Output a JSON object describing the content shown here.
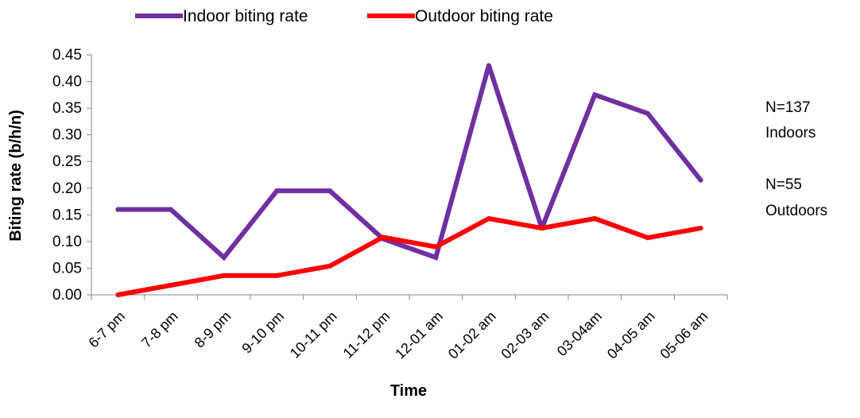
{
  "chart_data": {
    "type": "line",
    "xlabel": "Time",
    "ylabel": "Biting rate (b/h/n)",
    "categories": [
      "6-7 pm",
      "7-8 pm",
      "8-9 pm",
      "9-10 pm",
      "10-11 pm",
      "11-12 pm",
      "12-01 am",
      "01-02 am",
      "02-03 am",
      "03-04am",
      "04-05 am",
      "05-06 am"
    ],
    "ylim": [
      0,
      0.45
    ],
    "yticks": [
      "0.00",
      "0.05",
      "0.10",
      "0.15",
      "0.20",
      "0.25",
      "0.30",
      "0.35",
      "0.40",
      "0.45"
    ],
    "grid": false,
    "legend_position": "top",
    "series": [
      {
        "name": "Indoor biting rate",
        "color": "#7030A0",
        "values": [
          0.16,
          0.16,
          0.07,
          0.195,
          0.195,
          0.105,
          0.07,
          0.43,
          0.125,
          0.375,
          0.34,
          0.215
        ]
      },
      {
        "name": "Outdoor biting rate",
        "color": "#FF0000",
        "values": [
          0.0,
          0.018,
          0.036,
          0.036,
          0.054,
          0.108,
          0.09,
          0.143,
          0.125,
          0.143,
          0.107,
          0.125
        ]
      }
    ],
    "annotations": [
      "N=137",
      "Indoors",
      "N=55",
      "Outdoors"
    ]
  }
}
